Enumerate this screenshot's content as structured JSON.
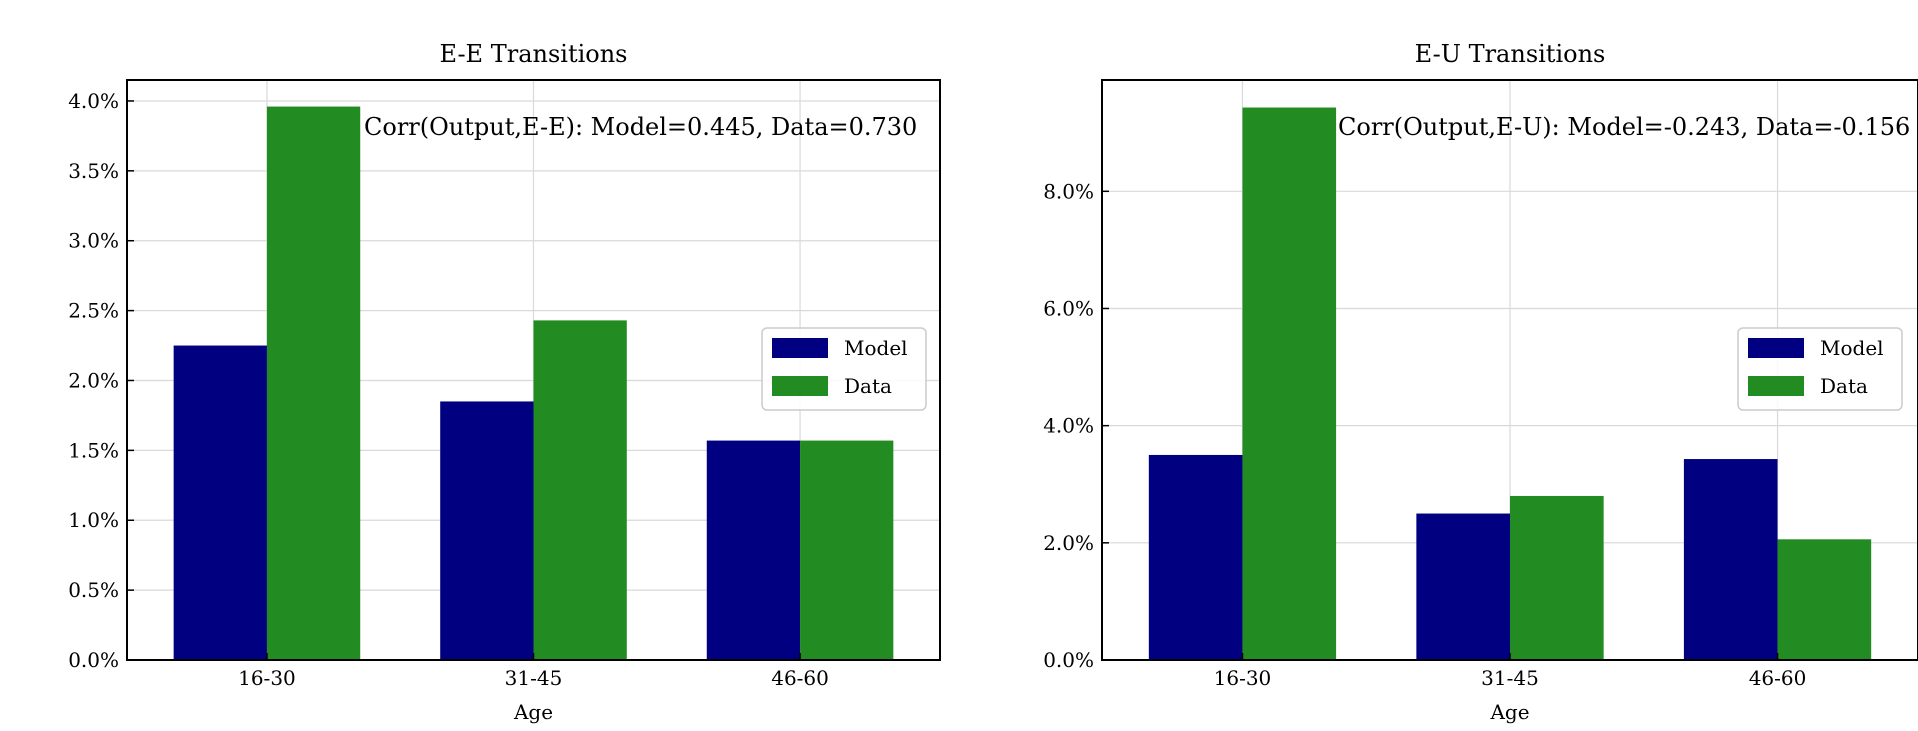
{
  "colors": {
    "model": "#000080",
    "data": "#228b22",
    "grid": "#d9d9d9"
  },
  "chart_data": [
    {
      "type": "bar",
      "title": "E-E Transitions",
      "xlabel": "Age",
      "ylabel": "",
      "categories": [
        "16-30",
        "31-45",
        "46-60"
      ],
      "series": [
        {
          "name": "Model",
          "values": [
            2.25,
            1.85,
            1.57
          ]
        },
        {
          "name": "Data",
          "values": [
            3.96,
            2.43,
            1.57
          ]
        }
      ],
      "ylim": [
        0,
        4.15
      ],
      "yticks": [
        0,
        0.5,
        1.0,
        1.5,
        2.0,
        2.5,
        3.0,
        3.5,
        4.0
      ],
      "ytick_labels": [
        "0.0%",
        "0.5%",
        "1.0%",
        "1.5%",
        "2.0%",
        "2.5%",
        "3.0%",
        "3.5%",
        "4.0%"
      ],
      "annotation": "Corr(Output,E-E): Model=0.445, Data=0.730",
      "grid": true,
      "legend": "center-right"
    },
    {
      "type": "bar",
      "title": "E-U Transitions",
      "xlabel": "Age",
      "ylabel": "",
      "categories": [
        "16-30",
        "31-45",
        "46-60"
      ],
      "series": [
        {
          "name": "Model",
          "values": [
            3.5,
            2.5,
            3.43
          ]
        },
        {
          "name": "Data",
          "values": [
            9.43,
            2.8,
            2.06
          ]
        }
      ],
      "ylim": [
        0,
        9.9
      ],
      "yticks": [
        0,
        2,
        4,
        6,
        8
      ],
      "ytick_labels": [
        "0.0%",
        "2.0%",
        "4.0%",
        "6.0%",
        "8.0%"
      ],
      "annotation": "Corr(Output,E-U): Model=-0.243, Data=-0.156",
      "grid": true,
      "legend": "center-right"
    }
  ]
}
